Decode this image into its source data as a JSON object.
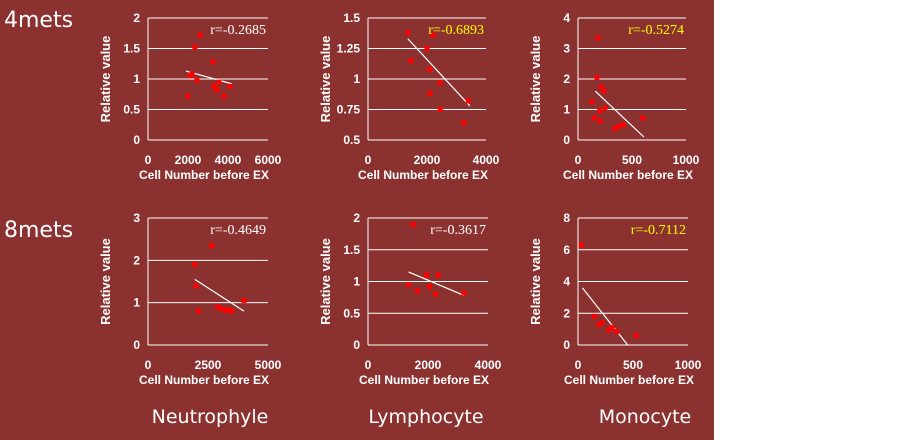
{
  "row_labels": [
    "4mets",
    "8mets"
  ],
  "column_labels": [
    "Neutrophyle",
    "Lymphocyte",
    "Monocyte"
  ],
  "chart_data": [
    {
      "type": "scatter",
      "title": "",
      "xlabel": "Cell Number before EX",
      "ylabel": "Relative value",
      "xlim": [
        0,
        6000
      ],
      "ylim": [
        0,
        2
      ],
      "xticks": [
        0,
        2000,
        4000,
        6000
      ],
      "yticks": [
        0,
        0.5,
        1,
        1.5,
        2
      ],
      "r_label": "r=-0.2685",
      "r_color": "#ffffff",
      "points": [
        [
          2000,
          0.72
        ],
        [
          2100,
          1.05
        ],
        [
          2200,
          1.08
        ],
        [
          2350,
          1.52
        ],
        [
          2450,
          0.98
        ],
        [
          2600,
          1.72
        ],
        [
          3250,
          1.28
        ],
        [
          3300,
          0.88
        ],
        [
          3450,
          0.82
        ],
        [
          3550,
          0.95
        ],
        [
          3800,
          0.72
        ],
        [
          4100,
          0.88
        ]
      ],
      "trend": [
        [
          1900,
          1.13
        ],
        [
          4200,
          0.92
        ]
      ]
    },
    {
      "type": "scatter",
      "title": "",
      "xlabel": "Cell Number before EX",
      "ylabel": "Relative value",
      "xlim": [
        0,
        4000
      ],
      "ylim": [
        0.5,
        1.5
      ],
      "xticks": [
        0,
        2000,
        4000
      ],
      "yticks": [
        0.5,
        0.75,
        1,
        1.25,
        1.5
      ],
      "r_label": "r=-0.6893",
      "r_color": "#ffff00",
      "points": [
        [
          1350,
          1.38
        ],
        [
          1450,
          1.15
        ],
        [
          2000,
          1.25
        ],
        [
          2100,
          1.08
        ],
        [
          2100,
          0.88
        ],
        [
          2200,
          1.36
        ],
        [
          2450,
          0.97
        ],
        [
          2450,
          0.75
        ],
        [
          3250,
          0.64
        ],
        [
          3400,
          0.82
        ]
      ],
      "trend": [
        [
          1350,
          1.33
        ],
        [
          3450,
          0.78
        ]
      ]
    },
    {
      "type": "scatter",
      "title": "",
      "xlabel": "Cell Number before EX",
      "ylabel": "Relative value",
      "xlim": [
        0,
        1000
      ],
      "ylim": [
        0,
        4
      ],
      "xticks": [
        0,
        500,
        1000
      ],
      "yticks": [
        0,
        1,
        2,
        3,
        4
      ],
      "r_label": "r=-0.5274",
      "r_color": "#ffff00",
      "points": [
        [
          130,
          1.25
        ],
        [
          150,
          0.72
        ],
        [
          175,
          2.05
        ],
        [
          185,
          3.35
        ],
        [
          200,
          0.95
        ],
        [
          205,
          0.62
        ],
        [
          215,
          1.75
        ],
        [
          240,
          1.6
        ],
        [
          250,
          1.05
        ],
        [
          340,
          0.38
        ],
        [
          380,
          0.45
        ],
        [
          420,
          0.5
        ],
        [
          600,
          0.72
        ]
      ],
      "trend": [
        [
          160,
          1.6
        ],
        [
          610,
          0.1
        ]
      ]
    },
    {
      "type": "scatter",
      "title": "",
      "xlabel": "Cell Number before EX",
      "ylabel": "Relative value",
      "xlim": [
        0,
        5000
      ],
      "ylim": [
        0,
        3
      ],
      "xticks": [
        0,
        2500,
        5000
      ],
      "yticks": [
        0,
        1,
        2,
        3
      ],
      "r_label": "r=-0.4649",
      "r_color": "#ffffff",
      "points": [
        [
          1950,
          1.9
        ],
        [
          2000,
          1.4
        ],
        [
          2100,
          0.8
        ],
        [
          2650,
          2.35
        ],
        [
          2900,
          0.9
        ],
        [
          3100,
          0.85
        ],
        [
          3250,
          0.82
        ],
        [
          3400,
          0.82
        ],
        [
          3500,
          0.8
        ],
        [
          4000,
          1.05
        ]
      ],
      "trend": [
        [
          1950,
          1.55
        ],
        [
          4000,
          0.8
        ]
      ]
    },
    {
      "type": "scatter",
      "title": "",
      "xlabel": "Cell Number before EX",
      "ylabel": "Relative value",
      "xlim": [
        0,
        4000
      ],
      "ylim": [
        0,
        2
      ],
      "xticks": [
        0,
        2000,
        4000
      ],
      "yticks": [
        0,
        0.5,
        1,
        1.5,
        2
      ],
      "r_label": "r=-0.3617",
      "r_color": "#ffffff",
      "points": [
        [
          1350,
          0.95
        ],
        [
          1500,
          1.9
        ],
        [
          1650,
          0.85
        ],
        [
          1950,
          1.1
        ],
        [
          2050,
          0.92
        ],
        [
          2250,
          0.8
        ],
        [
          2350,
          1.1
        ],
        [
          3200,
          0.82
        ]
      ],
      "trend": [
        [
          1350,
          1.15
        ],
        [
          3200,
          0.78
        ]
      ]
    },
    {
      "type": "scatter",
      "title": "",
      "xlabel": "Cell Number before EX",
      "ylabel": "Relative value",
      "xlim": [
        0,
        1000
      ],
      "ylim": [
        0,
        8
      ],
      "xticks": [
        0,
        500,
        1000
      ],
      "yticks": [
        0,
        2,
        4,
        6,
        8
      ],
      "r_label": "r=-0.7112",
      "r_color": "#ffff00",
      "points": [
        [
          30,
          6.3
        ],
        [
          150,
          1.8
        ],
        [
          190,
          1.3
        ],
        [
          220,
          1.4
        ],
        [
          280,
          0.95
        ],
        [
          310,
          1.1
        ],
        [
          350,
          0.85
        ],
        [
          530,
          0.6
        ]
      ],
      "trend": [
        [
          40,
          3.6
        ],
        [
          520,
          -0.6
        ]
      ]
    }
  ]
}
